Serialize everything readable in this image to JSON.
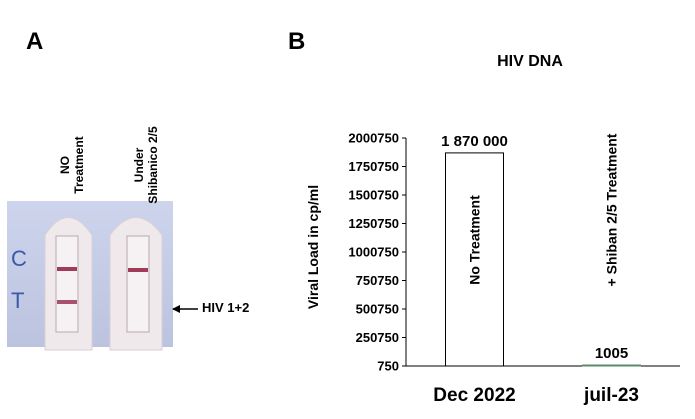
{
  "panels": {
    "a": {
      "letter": "A"
    },
    "b": {
      "letter": "B"
    }
  },
  "test_strip": {
    "column_labels": [
      "NO\nTreatment",
      "Under\nShibanico 2/5"
    ],
    "band_labels": [
      "C",
      "T"
    ],
    "arrow_label": "HIV 1+2",
    "colors": {
      "cassette": "#c9cfe6",
      "band": "#a03c5a",
      "letters": "#3b58a8"
    },
    "t_line_present": [
      1,
      0
    ]
  },
  "chart_data": {
    "type": "bar",
    "title": "HIV DNA",
    "ylabel": "Viral Load in cp/ml",
    "xlabel": "",
    "categories": [
      "Dec 2022",
      "juil-23"
    ],
    "values": [
      1870000,
      1005
    ],
    "data_labels": [
      "1 870 000",
      "1005"
    ],
    "bar_annotations": [
      "No Treatment",
      "+ Shiban 2/5 Treatment"
    ],
    "ylim": [
      750,
      2000750
    ],
    "y_ticks": [
      750,
      250750,
      500750,
      750750,
      1000750,
      1250750,
      1500750,
      1750750,
      2000750
    ],
    "y_tick_labels": [
      "750",
      "250750",
      "500750",
      "750750",
      "1000750",
      "1250750",
      "1500750",
      "1750750",
      "2000750"
    ],
    "grid": false,
    "colors": {
      "bar_fill": "#ffffff",
      "bar_stroke": "#000000",
      "second_bar": "#5a8a6a"
    }
  }
}
